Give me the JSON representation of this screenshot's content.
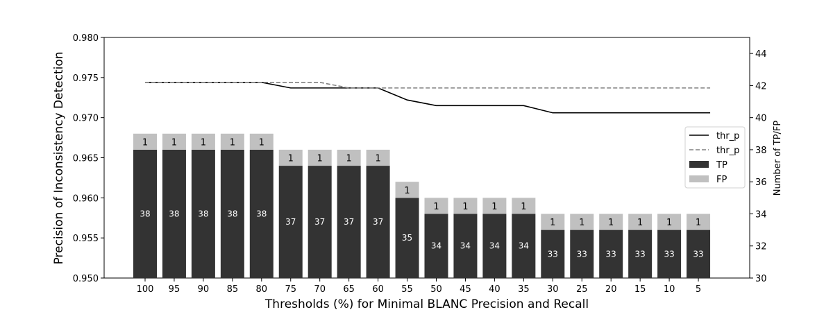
{
  "chart_data": {
    "type": "bar",
    "title": "",
    "xlabel": "Thresholds (%) for Minimal BLANC Precision and Recall",
    "ylabel_left": "Precision of Inconsistency Detection",
    "ylabel_right": "Number of TP/FP",
    "categories": [
      "100",
      "95",
      "90",
      "85",
      "80",
      "75",
      "70",
      "65",
      "60",
      "55",
      "50",
      "45",
      "40",
      "35",
      "30",
      "25",
      "20",
      "15",
      "10",
      "5"
    ],
    "ylim_left": [
      0.95,
      0.98
    ],
    "yticks_left": [
      "0.950",
      "0.955",
      "0.960",
      "0.965",
      "0.970",
      "0.975",
      "0.980"
    ],
    "ylim_right": [
      30,
      45
    ],
    "yticks_right": [
      "30",
      "32",
      "34",
      "36",
      "38",
      "40",
      "42",
      "44"
    ],
    "bars": [
      {
        "name": "TP",
        "color": "#333333",
        "label_color": "#ffffff",
        "values": [
          38,
          38,
          38,
          38,
          38,
          37,
          37,
          37,
          37,
          35,
          34,
          34,
          34,
          34,
          33,
          33,
          33,
          33,
          33,
          33
        ]
      },
      {
        "name": "FP",
        "color": "#c0c0c0",
        "label_color": "#000000",
        "values": [
          1,
          1,
          1,
          1,
          1,
          1,
          1,
          1,
          1,
          1,
          1,
          1,
          1,
          1,
          1,
          1,
          1,
          1,
          1,
          1
        ]
      }
    ],
    "lines": [
      {
        "name": "thr_p",
        "style": "solid",
        "color": "#000000",
        "values": [
          0.9744,
          0.9744,
          0.9744,
          0.9744,
          0.9744,
          0.9737,
          0.9737,
          0.9737,
          0.9737,
          0.9722,
          0.9715,
          0.9715,
          0.9715,
          0.9715,
          0.9706,
          0.9706,
          0.9706,
          0.9706,
          0.9706,
          0.9706
        ]
      },
      {
        "name": "thr_p",
        "style": "dashed",
        "color": "#808080",
        "values": [
          0.9744,
          0.9744,
          0.9744,
          0.9744,
          0.9744,
          0.9744,
          0.9744,
          0.9737,
          0.9737,
          0.9737,
          0.9737,
          0.9737,
          0.9737,
          0.9737,
          0.9737,
          0.9737,
          0.9737,
          0.9737,
          0.9737,
          0.9737
        ]
      }
    ],
    "legend": {
      "placement": "right",
      "entries": [
        "thr_p",
        "thr_p",
        "TP",
        "FP"
      ]
    },
    "grid": false
  }
}
